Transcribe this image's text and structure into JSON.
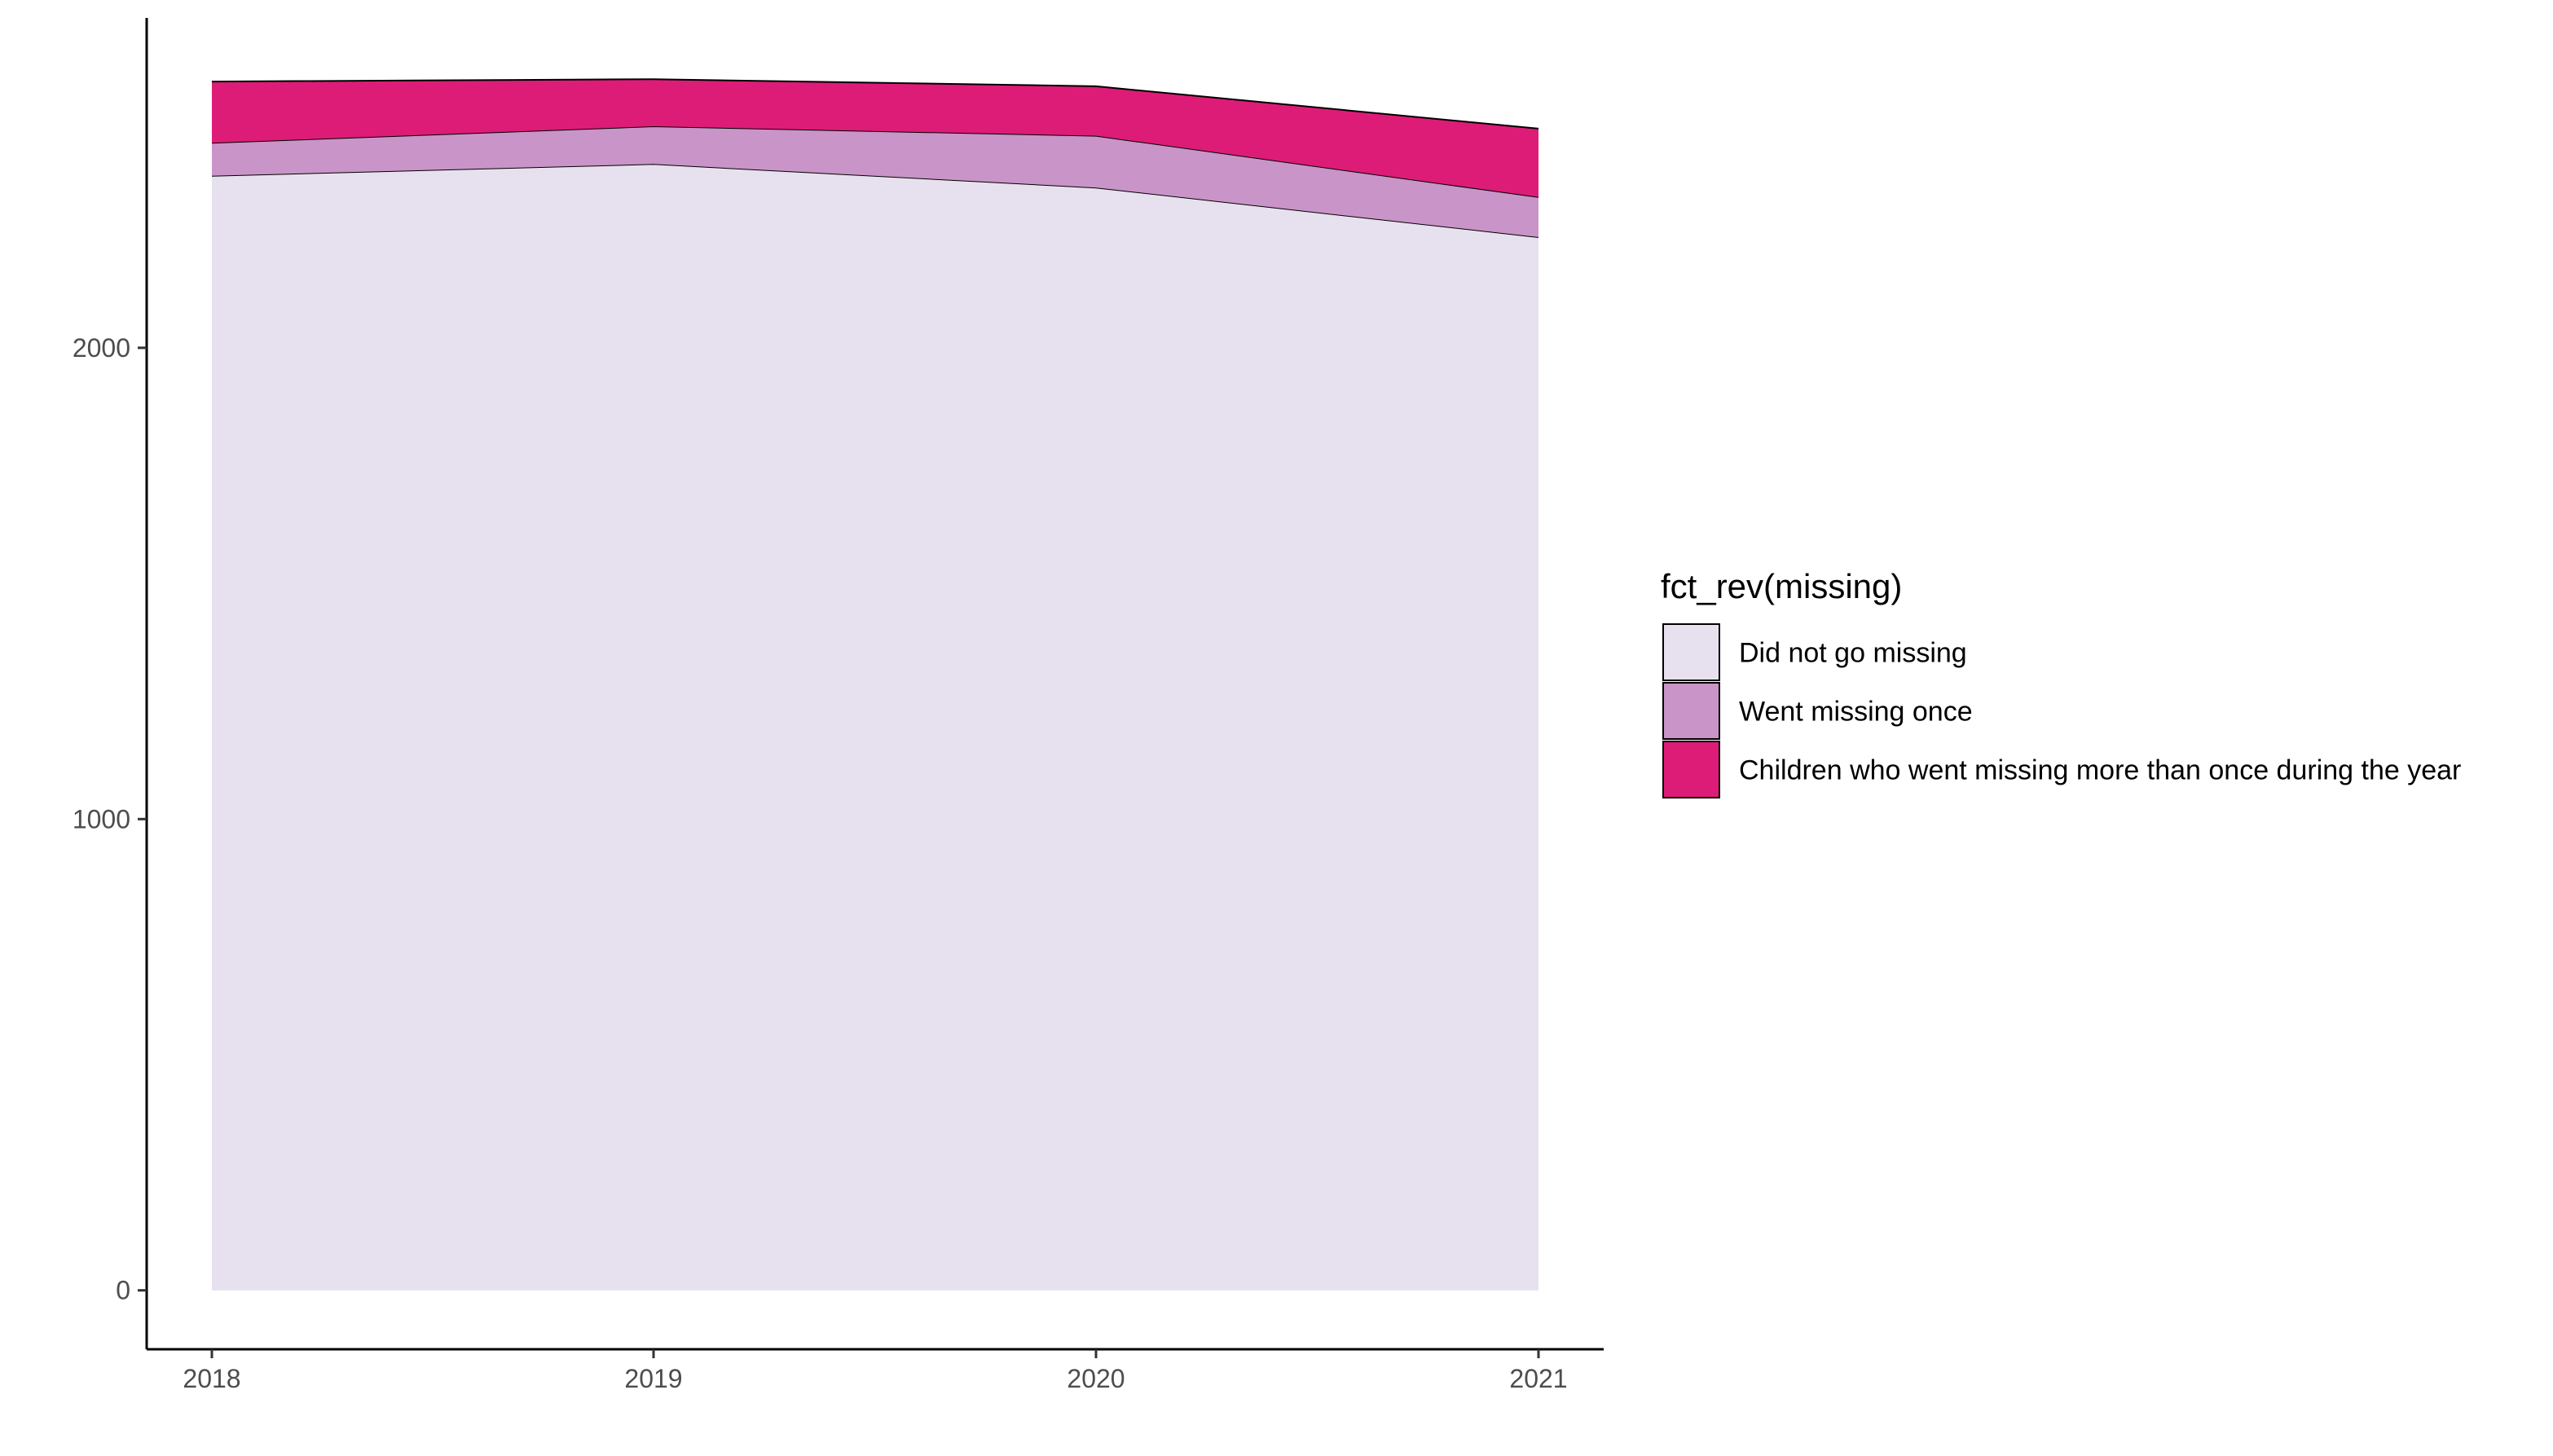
{
  "chart_data": {
    "type": "area",
    "stacked": true,
    "x": [
      2018,
      2019,
      2020,
      2021
    ],
    "x_ticks": [
      "2018",
      "2019",
      "2020",
      "2021"
    ],
    "y_ticks": [
      "0",
      "1000",
      "2000"
    ],
    "ylim": [
      -125,
      2700
    ],
    "xlabel": "",
    "ylabel": "",
    "title": "",
    "grid": false,
    "series": [
      {
        "name": "Did not go missing",
        "values": [
          2365,
          2390,
          2340,
          2235
        ],
        "color": "#E7E1EF"
      },
      {
        "name": "Went missing once",
        "values": [
          70,
          80,
          110,
          85
        ],
        "color": "#C994C7"
      },
      {
        "name": "Children who went missing more than once during the year",
        "values": [
          130,
          100,
          105,
          145
        ],
        "color": "#DD1C77"
      }
    ],
    "legend": {
      "title": "fct_rev(missing)",
      "position": "right"
    }
  }
}
